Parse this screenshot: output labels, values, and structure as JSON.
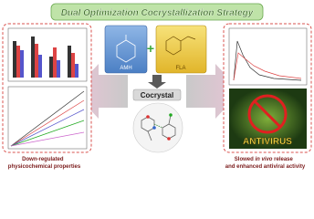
{
  "title": "Dual Optimization Cocrystallization Strategy",
  "center": {
    "left_component": "AMH",
    "right_component": "FLA",
    "product": "Cocrystal"
  },
  "left_panel": {
    "caption": [
      "Down-regulated",
      "physicochemical properties"
    ]
  },
  "right_panel": {
    "image_label": "ANTIVIRUS",
    "caption": {
      "line1": [
        "Slowed ",
        "in vivo",
        " release"
      ],
      "line2": "and enhanced antiviral activity"
    }
  }
}
